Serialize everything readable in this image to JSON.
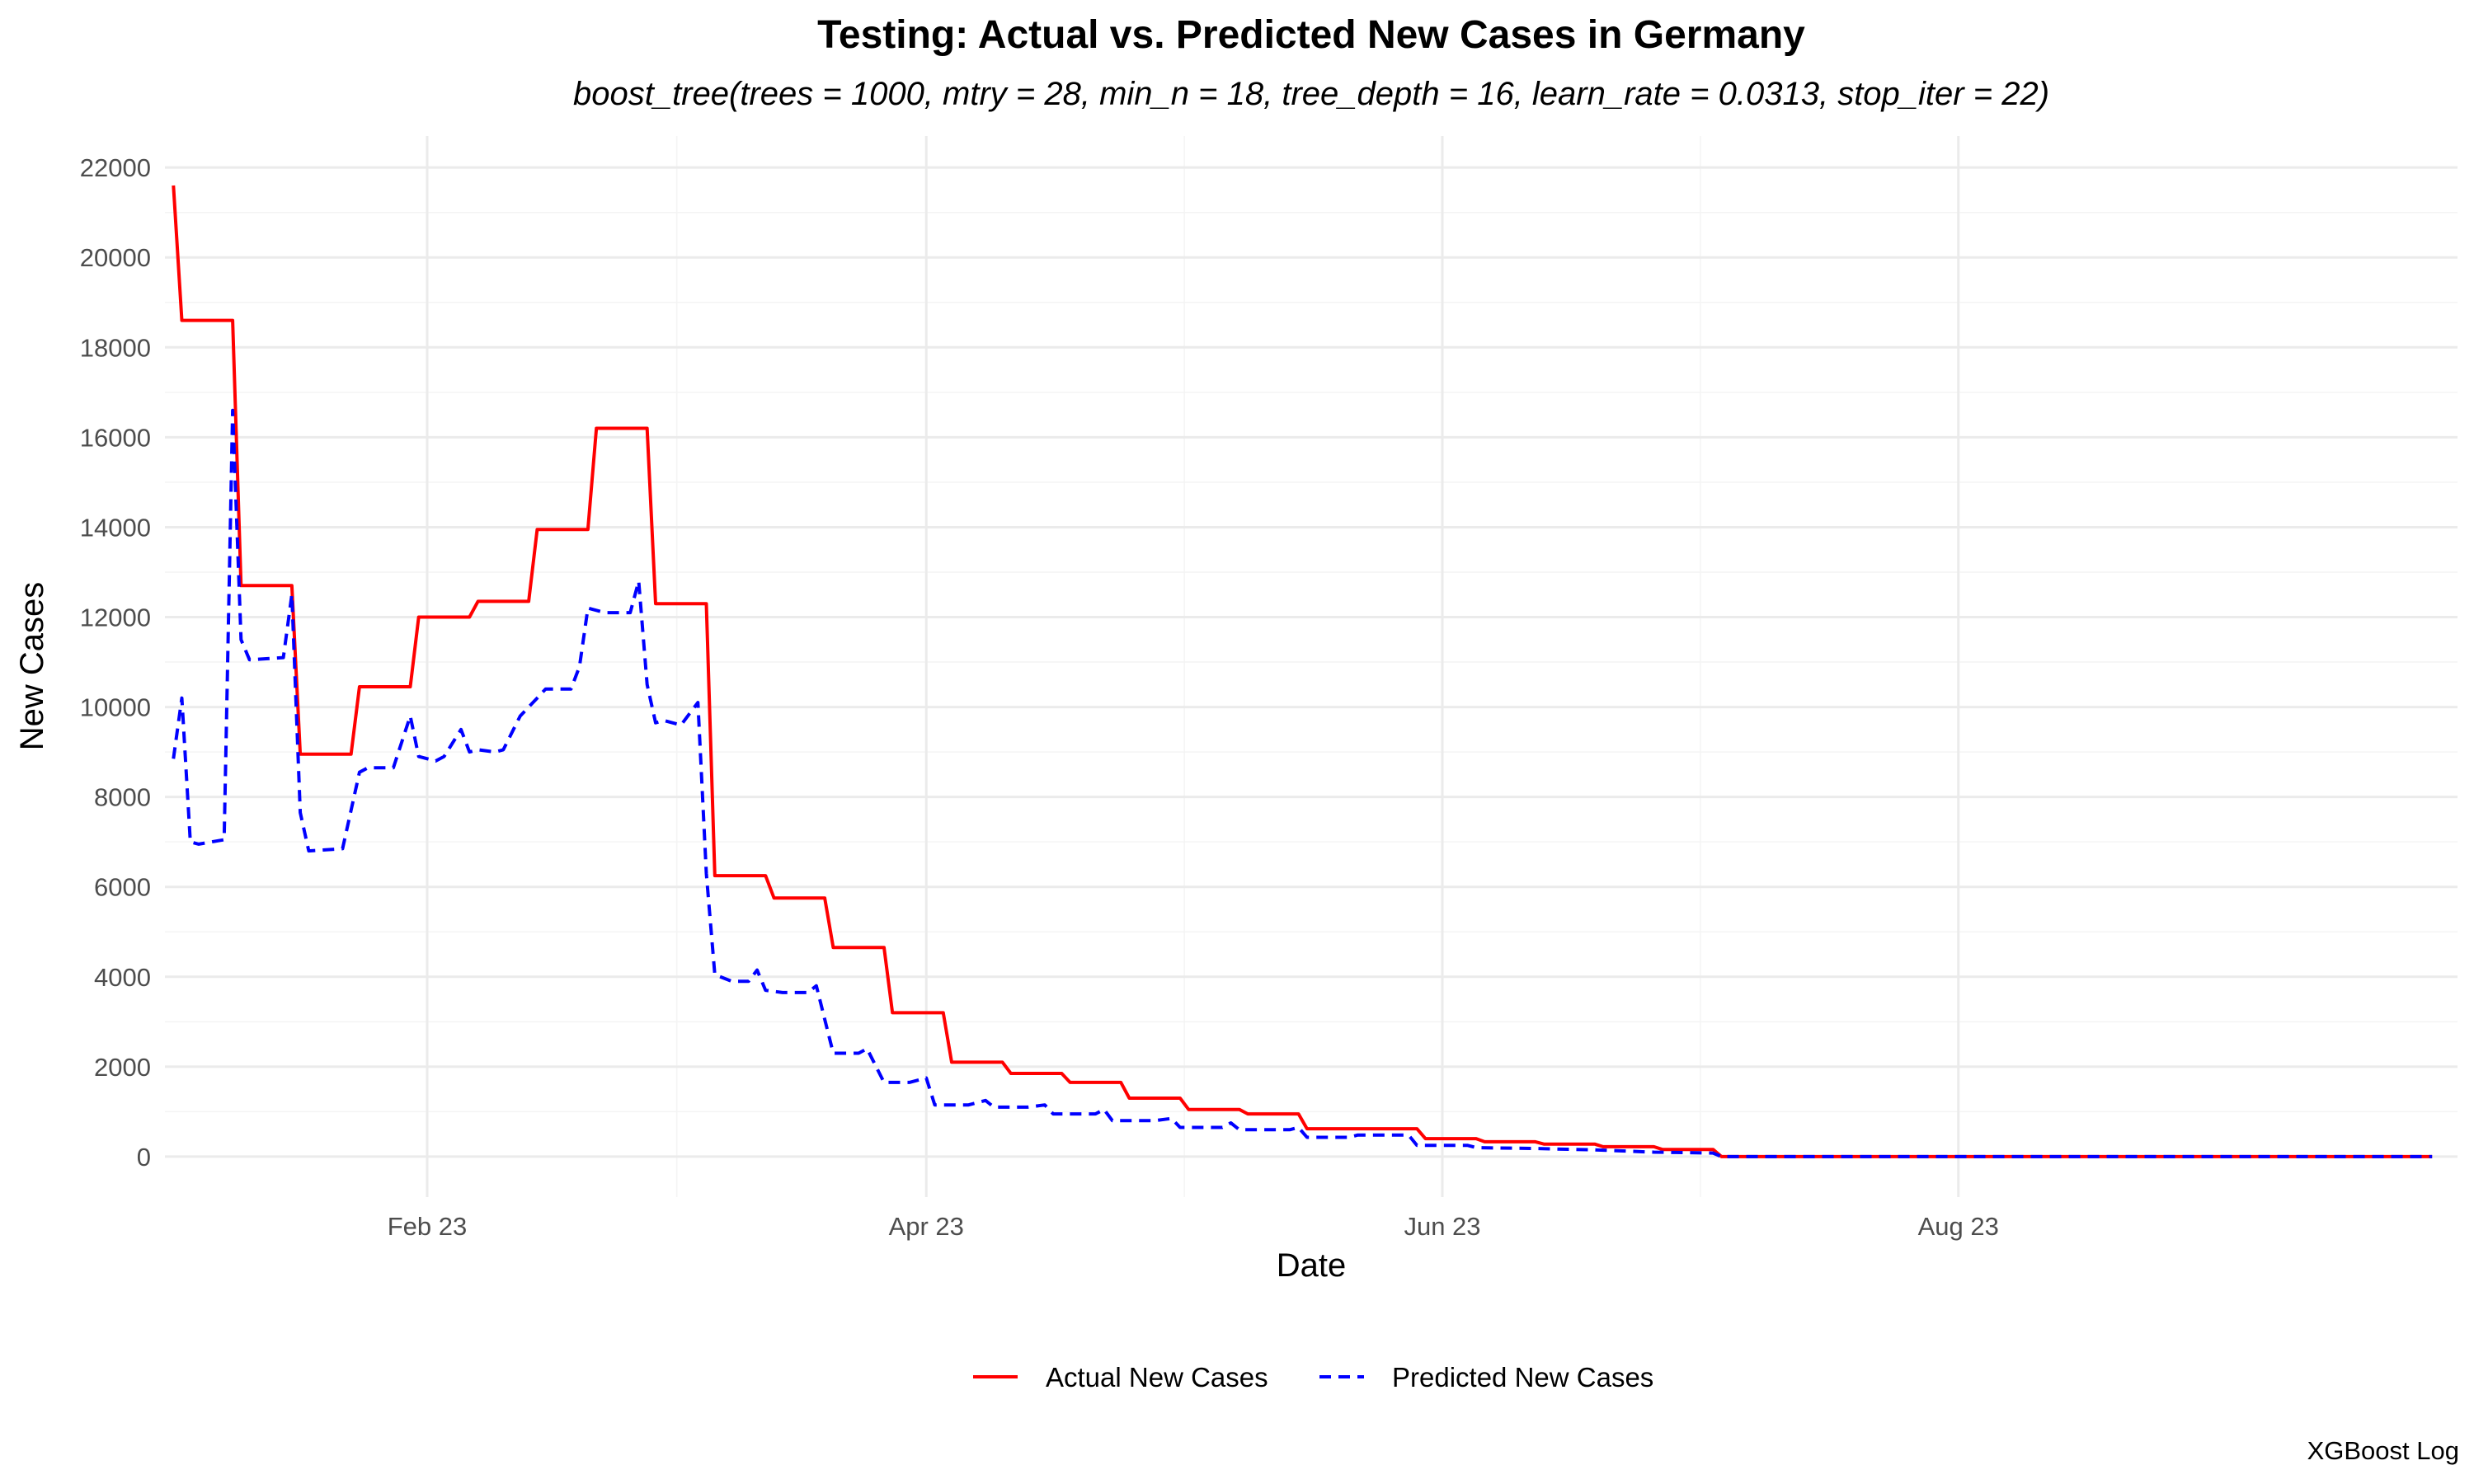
{
  "chart_data": {
    "type": "line",
    "title": "Testing: Actual vs. Predicted New Cases in Germany",
    "subtitle": "boost_tree(trees = 1000, mtry = 28, min_n = 18, tree_depth = 16, learn_rate = 0.0313, stop_iter = 22)",
    "xlabel": "Date",
    "ylabel": "New Cases",
    "caption": "XGBoost Log",
    "xlim": [
      "2023-01-01",
      "2023-09-29"
    ],
    "ylim": [
      -900,
      22700
    ],
    "x_ticks": [
      {
        "date": "2023-02-01",
        "label": "Feb 23"
      },
      {
        "date": "2023-04-01",
        "label": "Apr 23"
      },
      {
        "date": "2023-06-01",
        "label": "Jun 23"
      },
      {
        "date": "2023-08-01",
        "label": "Aug 23"
      }
    ],
    "y_ticks": [
      0,
      2000,
      4000,
      6000,
      8000,
      10000,
      12000,
      14000,
      16000,
      18000,
      20000,
      22000
    ],
    "grid": true,
    "legend_position": "bottom",
    "series": [
      {
        "name": "Actual New Cases",
        "color": "#ff0000",
        "dash": "solid",
        "points": [
          [
            "2023-01-02",
            21600
          ],
          [
            "2023-01-03",
            18600
          ],
          [
            "2023-01-09",
            18600
          ],
          [
            "2023-01-10",
            12700
          ],
          [
            "2023-01-16",
            12700
          ],
          [
            "2023-01-17",
            8950
          ],
          [
            "2023-01-23",
            8950
          ],
          [
            "2023-01-24",
            10450
          ],
          [
            "2023-01-30",
            10450
          ],
          [
            "2023-01-31",
            12000
          ],
          [
            "2023-02-06",
            12000
          ],
          [
            "2023-02-07",
            12350
          ],
          [
            "2023-02-13",
            12350
          ],
          [
            "2023-02-14",
            13950
          ],
          [
            "2023-02-20",
            13950
          ],
          [
            "2023-02-21",
            16200
          ],
          [
            "2023-02-27",
            16200
          ],
          [
            "2023-02-28",
            12300
          ],
          [
            "2023-03-06",
            12300
          ],
          [
            "2023-03-07",
            6250
          ],
          [
            "2023-03-13",
            6250
          ],
          [
            "2023-03-14",
            5750
          ],
          [
            "2023-03-20",
            5750
          ],
          [
            "2023-03-21",
            4650
          ],
          [
            "2023-03-27",
            4650
          ],
          [
            "2023-03-28",
            3200
          ],
          [
            "2023-04-03",
            3200
          ],
          [
            "2023-04-04",
            2100
          ],
          [
            "2023-04-10",
            2100
          ],
          [
            "2023-04-11",
            1850
          ],
          [
            "2023-04-17",
            1850
          ],
          [
            "2023-04-18",
            1650
          ],
          [
            "2023-04-24",
            1650
          ],
          [
            "2023-04-25",
            1300
          ],
          [
            "2023-05-01",
            1300
          ],
          [
            "2023-05-02",
            1050
          ],
          [
            "2023-05-08",
            1050
          ],
          [
            "2023-05-09",
            950
          ],
          [
            "2023-05-15",
            950
          ],
          [
            "2023-05-16",
            620
          ],
          [
            "2023-05-29",
            620
          ],
          [
            "2023-05-30",
            400
          ],
          [
            "2023-06-05",
            400
          ],
          [
            "2023-06-06",
            330
          ],
          [
            "2023-06-12",
            330
          ],
          [
            "2023-06-13",
            280
          ],
          [
            "2023-06-19",
            280
          ],
          [
            "2023-06-20",
            220
          ],
          [
            "2023-06-26",
            220
          ],
          [
            "2023-06-27",
            160
          ],
          [
            "2023-07-03",
            160
          ],
          [
            "2023-07-04",
            0
          ],
          [
            "2023-09-26",
            0
          ]
        ]
      },
      {
        "name": "Predicted New Cases",
        "color": "#0000ff",
        "dash": "dashed",
        "points": [
          [
            "2023-01-02",
            8850
          ],
          [
            "2023-01-03",
            10200
          ],
          [
            "2023-01-04",
            7000
          ],
          [
            "2023-01-05",
            6950
          ],
          [
            "2023-01-08",
            7050
          ],
          [
            "2023-01-09",
            16600
          ],
          [
            "2023-01-10",
            11500
          ],
          [
            "2023-01-11",
            11050
          ],
          [
            "2023-01-15",
            11100
          ],
          [
            "2023-01-16",
            12500
          ],
          [
            "2023-01-17",
            7650
          ],
          [
            "2023-01-18",
            6800
          ],
          [
            "2023-01-22",
            6850
          ],
          [
            "2023-01-24",
            8550
          ],
          [
            "2023-01-25",
            8650
          ],
          [
            "2023-01-28",
            8650
          ],
          [
            "2023-01-30",
            9800
          ],
          [
            "2023-01-31",
            8900
          ],
          [
            "2023-02-02",
            8800
          ],
          [
            "2023-02-03",
            8900
          ],
          [
            "2023-02-05",
            9500
          ],
          [
            "2023-02-06",
            9000
          ],
          [
            "2023-02-07",
            9050
          ],
          [
            "2023-02-09",
            9000
          ],
          [
            "2023-02-10",
            9050
          ],
          [
            "2023-02-12",
            9800
          ],
          [
            "2023-02-14",
            10200
          ],
          [
            "2023-02-15",
            10400
          ],
          [
            "2023-02-18",
            10400
          ],
          [
            "2023-02-19",
            10900
          ],
          [
            "2023-02-20",
            12200
          ],
          [
            "2023-02-22",
            12100
          ],
          [
            "2023-02-25",
            12100
          ],
          [
            "2023-02-26",
            12800
          ],
          [
            "2023-02-27",
            10500
          ],
          [
            "2023-02-28",
            9650
          ],
          [
            "2023-03-01",
            9700
          ],
          [
            "2023-03-03",
            9600
          ],
          [
            "2023-03-05",
            10100
          ],
          [
            "2023-03-06",
            6300
          ],
          [
            "2023-03-07",
            4050
          ],
          [
            "2023-03-09",
            3900
          ],
          [
            "2023-03-11",
            3900
          ],
          [
            "2023-03-12",
            4150
          ],
          [
            "2023-03-13",
            3700
          ],
          [
            "2023-03-15",
            3650
          ],
          [
            "2023-03-18",
            3650
          ],
          [
            "2023-03-19",
            3800
          ],
          [
            "2023-03-21",
            2300
          ],
          [
            "2023-03-24",
            2300
          ],
          [
            "2023-03-25",
            2400
          ],
          [
            "2023-03-27",
            1650
          ],
          [
            "2023-03-30",
            1650
          ],
          [
            "2023-04-01",
            1750
          ],
          [
            "2023-04-02",
            1150
          ],
          [
            "2023-04-06",
            1150
          ],
          [
            "2023-04-08",
            1250
          ],
          [
            "2023-04-09",
            1100
          ],
          [
            "2023-04-13",
            1100
          ],
          [
            "2023-04-15",
            1150
          ],
          [
            "2023-04-16",
            950
          ],
          [
            "2023-04-21",
            950
          ],
          [
            "2023-04-22",
            1050
          ],
          [
            "2023-04-23",
            800
          ],
          [
            "2023-04-28",
            800
          ],
          [
            "2023-04-30",
            850
          ],
          [
            "2023-05-01",
            650
          ],
          [
            "2023-05-06",
            650
          ],
          [
            "2023-05-07",
            750
          ],
          [
            "2023-05-08",
            600
          ],
          [
            "2023-05-14",
            600
          ],
          [
            "2023-05-15",
            650
          ],
          [
            "2023-05-16",
            430
          ],
          [
            "2023-05-21",
            430
          ],
          [
            "2023-05-22",
            480
          ],
          [
            "2023-05-28",
            480
          ],
          [
            "2023-05-29",
            250
          ],
          [
            "2023-06-04",
            250
          ],
          [
            "2023-06-05",
            200
          ],
          [
            "2023-06-12",
            180
          ],
          [
            "2023-06-19",
            150
          ],
          [
            "2023-06-26",
            100
          ],
          [
            "2023-07-03",
            80
          ],
          [
            "2023-07-04",
            0
          ],
          [
            "2023-09-26",
            0
          ]
        ]
      }
    ]
  }
}
